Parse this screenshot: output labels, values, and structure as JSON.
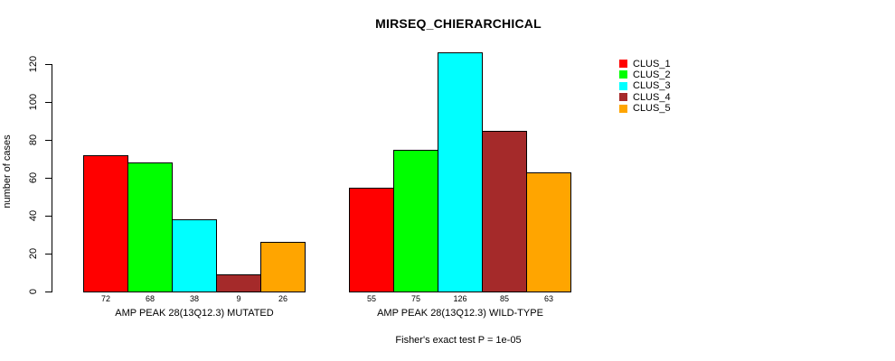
{
  "chart_data": {
    "type": "bar",
    "title": "MIRSEQ_CHIERARCHICAL",
    "ylabel": "number of cases",
    "xlabel": "",
    "ylim": [
      0,
      126
    ],
    "yticks": [
      0,
      20,
      40,
      60,
      80,
      100,
      120
    ],
    "grid": false,
    "legend_position": "top-right",
    "annotation": "Fisher's exact test P = 1e-05",
    "categories": [
      "AMP PEAK 28(13Q12.3) MUTATED",
      "AMP PEAK 28(13Q12.3) WILD-TYPE"
    ],
    "series": [
      {
        "name": "CLUS_1",
        "color": "#ff0000",
        "values": [
          72,
          55
        ]
      },
      {
        "name": "CLUS_2",
        "color": "#00ff00",
        "values": [
          68,
          75
        ]
      },
      {
        "name": "CLUS_3",
        "color": "#00ffff",
        "values": [
          38,
          126
        ]
      },
      {
        "name": "CLUS_4",
        "color": "#a52a2a",
        "values": [
          9,
          85
        ]
      },
      {
        "name": "CLUS_5",
        "color": "#ffa500",
        "values": [
          26,
          63
        ]
      }
    ],
    "bar_value_labels_shown": true
  }
}
